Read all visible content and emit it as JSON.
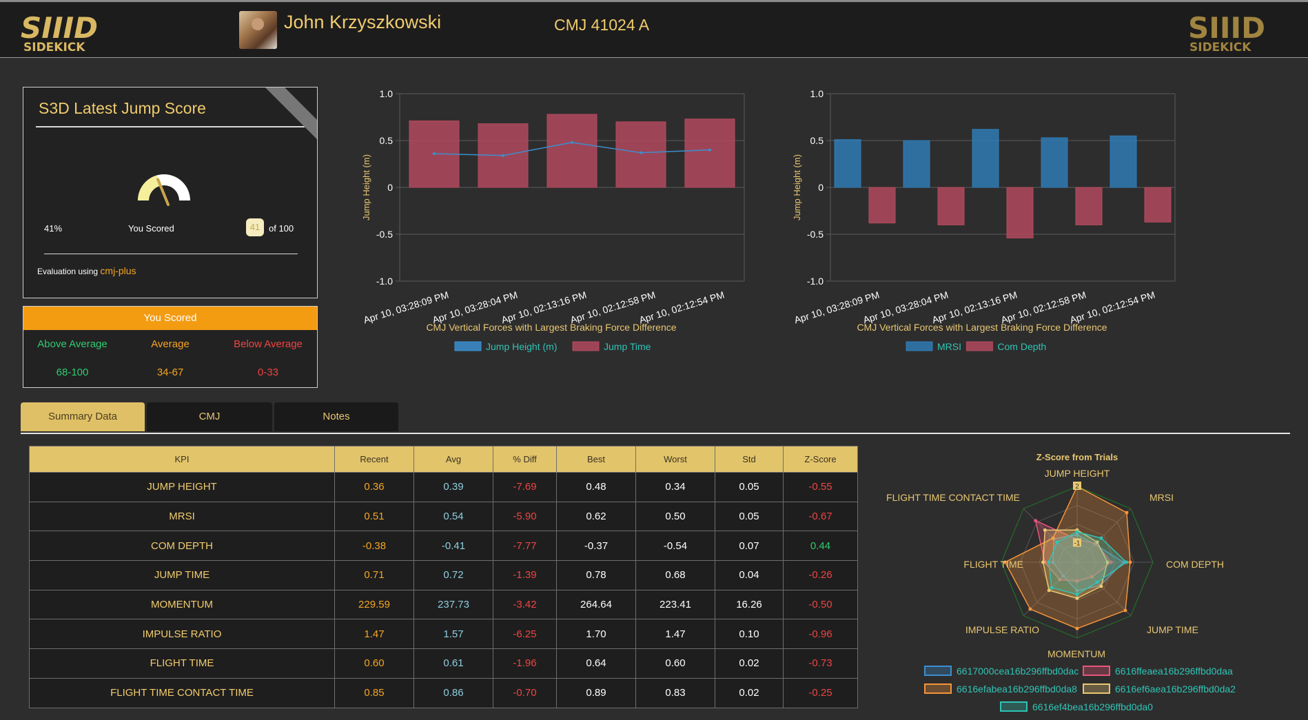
{
  "header": {
    "logo_text_top": "SIIID",
    "logo_text_bottom": "SIDEKICK",
    "athlete_name": "John Krzyszkowski",
    "test_name": "CMJ 41024 A"
  },
  "score_card": {
    "title": "S3D Latest Jump Score",
    "percent": "41%",
    "you_scored_label": "You Scored",
    "score": "41",
    "of_label": "of 100",
    "gauge_fraction": 0.41,
    "evaluation_prefix": "Evaluation using",
    "evaluation_method": "cmj-plus"
  },
  "score_legend": {
    "header": "You Scored",
    "bands": [
      {
        "label": "Above Average",
        "range": "68-100",
        "color": "#2ecc71"
      },
      {
        "label": "Average",
        "range": "34-67",
        "color": "#f5a623"
      },
      {
        "label": "Below Average",
        "range": "0-33",
        "color": "#ef4444"
      }
    ]
  },
  "tabs": [
    {
      "label": "Summary Data",
      "active": true
    },
    {
      "label": "CMJ",
      "active": false
    },
    {
      "label": "Notes",
      "active": false
    }
  ],
  "kpi_table": {
    "headers": [
      "KPI",
      "Recent",
      "Avg",
      "% Diff",
      "Best",
      "Worst",
      "Std",
      "Z-Score"
    ],
    "rows": [
      [
        "JUMP HEIGHT",
        "0.36",
        "0.39",
        "-7.69",
        "0.48",
        "0.34",
        "0.05",
        "-0.55"
      ],
      [
        "MRSI",
        "0.51",
        "0.54",
        "-5.90",
        "0.62",
        "0.50",
        "0.05",
        "-0.67"
      ],
      [
        "COM DEPTH",
        "-0.38",
        "-0.41",
        "-7.77",
        "-0.37",
        "-0.54",
        "0.07",
        "0.44"
      ],
      [
        "JUMP TIME",
        "0.71",
        "0.72",
        "-1.39",
        "0.78",
        "0.68",
        "0.04",
        "-0.26"
      ],
      [
        "MOMENTUM",
        "229.59",
        "237.73",
        "-3.42",
        "264.64",
        "223.41",
        "16.26",
        "-0.50"
      ],
      [
        "IMPULSE RATIO",
        "1.47",
        "1.57",
        "-6.25",
        "1.70",
        "1.47",
        "0.10",
        "-0.96"
      ],
      [
        "FLIGHT TIME",
        "0.60",
        "0.61",
        "-1.96",
        "0.64",
        "0.60",
        "0.02",
        "-0.73"
      ],
      [
        "FLIGHT TIME CONTACT TIME",
        "0.85",
        "0.86",
        "-0.70",
        "0.89",
        "0.83",
        "0.02",
        "-0.25"
      ]
    ]
  },
  "chart_data": [
    {
      "type": "bar",
      "title": "CMJ Vertical Forces with Largest Braking Force Difference",
      "ylabel": "Jump Height (m)",
      "ylim": [
        -1.0,
        1.0
      ],
      "yticks": [
        "1.0",
        "0.5",
        "0",
        "-0.5",
        "-1.0"
      ],
      "categories": [
        "Apr 10, 03:28:09 PM",
        "Apr 10, 03:28:04 PM",
        "Apr 10, 02:13:16 PM",
        "Apr 10, 02:12:58 PM",
        "Apr 10, 02:12:54 PM"
      ],
      "series": [
        {
          "name": "Jump Height (m)",
          "kind": "line",
          "color": "#3b8fd1",
          "values": [
            0.36,
            0.34,
            0.48,
            0.37,
            0.4
          ]
        },
        {
          "name": "Jump Time",
          "kind": "bar",
          "color": "#b04a5e",
          "values": [
            0.71,
            0.68,
            0.78,
            0.7,
            0.73
          ]
        }
      ],
      "legend": "bottom"
    },
    {
      "type": "bar",
      "title": "CMJ Vertical Forces with Largest Braking Force Difference",
      "ylabel": "Jump Height (m)",
      "ylim": [
        -1.0,
        1.0
      ],
      "yticks": [
        "1.0",
        "0.5",
        "0",
        "-0.5",
        "-1.0"
      ],
      "categories": [
        "Apr 10, 03:28:09 PM",
        "Apr 10, 03:28:04 PM",
        "Apr 10, 02:13:16 PM",
        "Apr 10, 02:12:58 PM",
        "Apr 10, 02:12:54 PM"
      ],
      "series": [
        {
          "name": "MRSI",
          "kind": "bar",
          "color": "#2f7bb5",
          "values": [
            0.51,
            0.5,
            0.62,
            0.53,
            0.55
          ]
        },
        {
          "name": "Com Depth",
          "kind": "bar",
          "color": "#b04a5e",
          "values": [
            -0.38,
            -0.4,
            -0.54,
            -0.4,
            -0.37
          ]
        }
      ],
      "legend": "bottom"
    },
    {
      "type": "radar",
      "title": "Z-Score from Trials",
      "axes": [
        "JUMP HEIGHT",
        "MRSI",
        "COM DEPTH",
        "JUMP TIME",
        "MOMENTUM",
        "IMPULSE RATIO",
        "FLIGHT TIME",
        "FLIGHT TIME CONTACT TIME"
      ],
      "tick_labels": [
        "2",
        "-1"
      ],
      "rlim": [
        -2,
        2
      ],
      "series": [
        {
          "name": "6617000cea16b296ffbd0dac",
          "color": "#3b8fd1",
          "values": [
            -0.55,
            -0.67,
            0.44,
            -0.26,
            -0.5,
            -0.96,
            -0.73,
            -0.25
          ]
        },
        {
          "name": "6616ffeaea16b296ffbd0daa",
          "color": "#e8557a",
          "values": [
            -0.8,
            -0.6,
            -0.2,
            -0.9,
            -1.0,
            -0.7,
            -0.3,
            1.1
          ]
        },
        {
          "name": "6616efabea16b296ffbd0da8",
          "color": "#f5953a",
          "values": [
            2.0,
            1.7,
            0.8,
            1.6,
            1.5,
            1.5,
            1.8,
            -0.2
          ]
        },
        {
          "name": "6616ef6aea16b296ffbd0da2",
          "color": "#e8c873",
          "values": [
            -0.3,
            -0.5,
            -0.4,
            -0.2,
            -0.1,
            0.1,
            -0.2,
            0.4
          ]
        },
        {
          "name": "6616ef4bea16b296ffbd0da0",
          "color": "#2ec4b6",
          "values": [
            -0.4,
            -0.2,
            0.6,
            -0.5,
            -0.3,
            -0.1,
            -0.5,
            -0.5
          ]
        }
      ],
      "legend": "bottom"
    }
  ],
  "colors": {
    "gold": "#e8c873",
    "orange": "#f5a623",
    "red": "#ef4444",
    "green": "#2ecc71",
    "teal": "#8ecfe0"
  }
}
